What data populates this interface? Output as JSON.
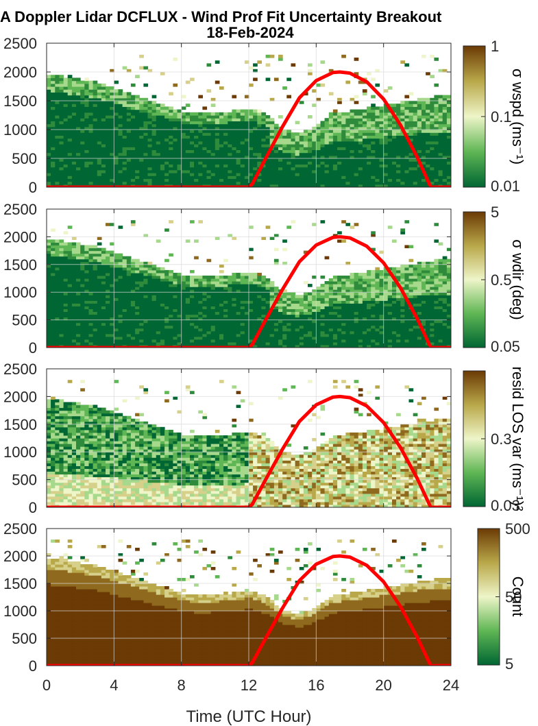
{
  "title_line1": "A Doppler Lidar DCFLUX - Wind Prof Fit Uncertainty Breakout",
  "title_line2": "18-Feb-2024",
  "chart_data": [
    {
      "type": "heatmap",
      "ylim": [
        0,
        2500
      ],
      "xlim": [
        0,
        24
      ],
      "y_ticks": [
        "0",
        "500",
        "1000",
        "1500",
        "2000",
        "2500"
      ],
      "colorbar": {
        "label": "σ wspd (ms⁻¹)",
        "ticks": [
          "0.01",
          "0.1",
          "1"
        ],
        "scale": "log"
      },
      "grid": true
    },
    {
      "type": "heatmap",
      "ylim": [
        0,
        2500
      ],
      "xlim": [
        0,
        24
      ],
      "y_ticks": [
        "0",
        "500",
        "1000",
        "1500",
        "2000",
        "2500"
      ],
      "colorbar": {
        "label": "σ wdir (deg)",
        "ticks": [
          "0.05",
          "0.5",
          "5"
        ],
        "scale": "log"
      },
      "grid": true
    },
    {
      "type": "heatmap",
      "ylim": [
        0,
        2500
      ],
      "xlim": [
        0,
        24
      ],
      "y_ticks": [
        "0",
        "500",
        "1000",
        "1500",
        "2000",
        "2500"
      ],
      "colorbar": {
        "label": "resid LOS var (ms⁻¹)²",
        "ticks": [
          "0.03",
          "0.3"
        ],
        "scale": "log"
      },
      "grid": true
    },
    {
      "type": "heatmap",
      "ylim": [
        0,
        2500
      ],
      "xlim": [
        0,
        24
      ],
      "y_ticks": [
        "0",
        "500",
        "1000",
        "1500",
        "2000",
        "2500"
      ],
      "x_ticks": [
        "0",
        "4",
        "8",
        "12",
        "16",
        "20",
        "24"
      ],
      "xlabel": "Time (UTC Hour)",
      "colorbar": {
        "label": "Count",
        "ticks": [
          "5",
          "50",
          "500"
        ],
        "scale": "log"
      },
      "grid": true
    }
  ],
  "boundary_layer_top": {
    "x": [
      0,
      1,
      2,
      3,
      4,
      5,
      6,
      7,
      8,
      9,
      10,
      11,
      12,
      13,
      14,
      15,
      16,
      17,
      18,
      19,
      20,
      21,
      22,
      23,
      24
    ],
    "y": [
      1950,
      1900,
      1850,
      1800,
      1700,
      1600,
      1500,
      1400,
      1300,
      1250,
      1270,
      1300,
      1350,
      1250,
      1000,
      900,
      1050,
      1250,
      1300,
      1350,
      1400,
      1450,
      1500,
      1550,
      1550
    ]
  },
  "sun_elevation_overlay": {
    "x": [
      0,
      12,
      12.2,
      13,
      14,
      15,
      16,
      17,
      17.4,
      18,
      19,
      20,
      21,
      22,
      22.8,
      24
    ],
    "y": [
      0,
      0,
      50,
      500,
      1050,
      1550,
      1850,
      1990,
      2000,
      1980,
      1830,
      1530,
      1080,
      520,
      0,
      0
    ]
  },
  "colors": {
    "sun_line": "#ff0000",
    "colormap": [
      "#006633",
      "#66bb55",
      "#eef5c8",
      "#b9a84a",
      "#6b3a05"
    ]
  }
}
